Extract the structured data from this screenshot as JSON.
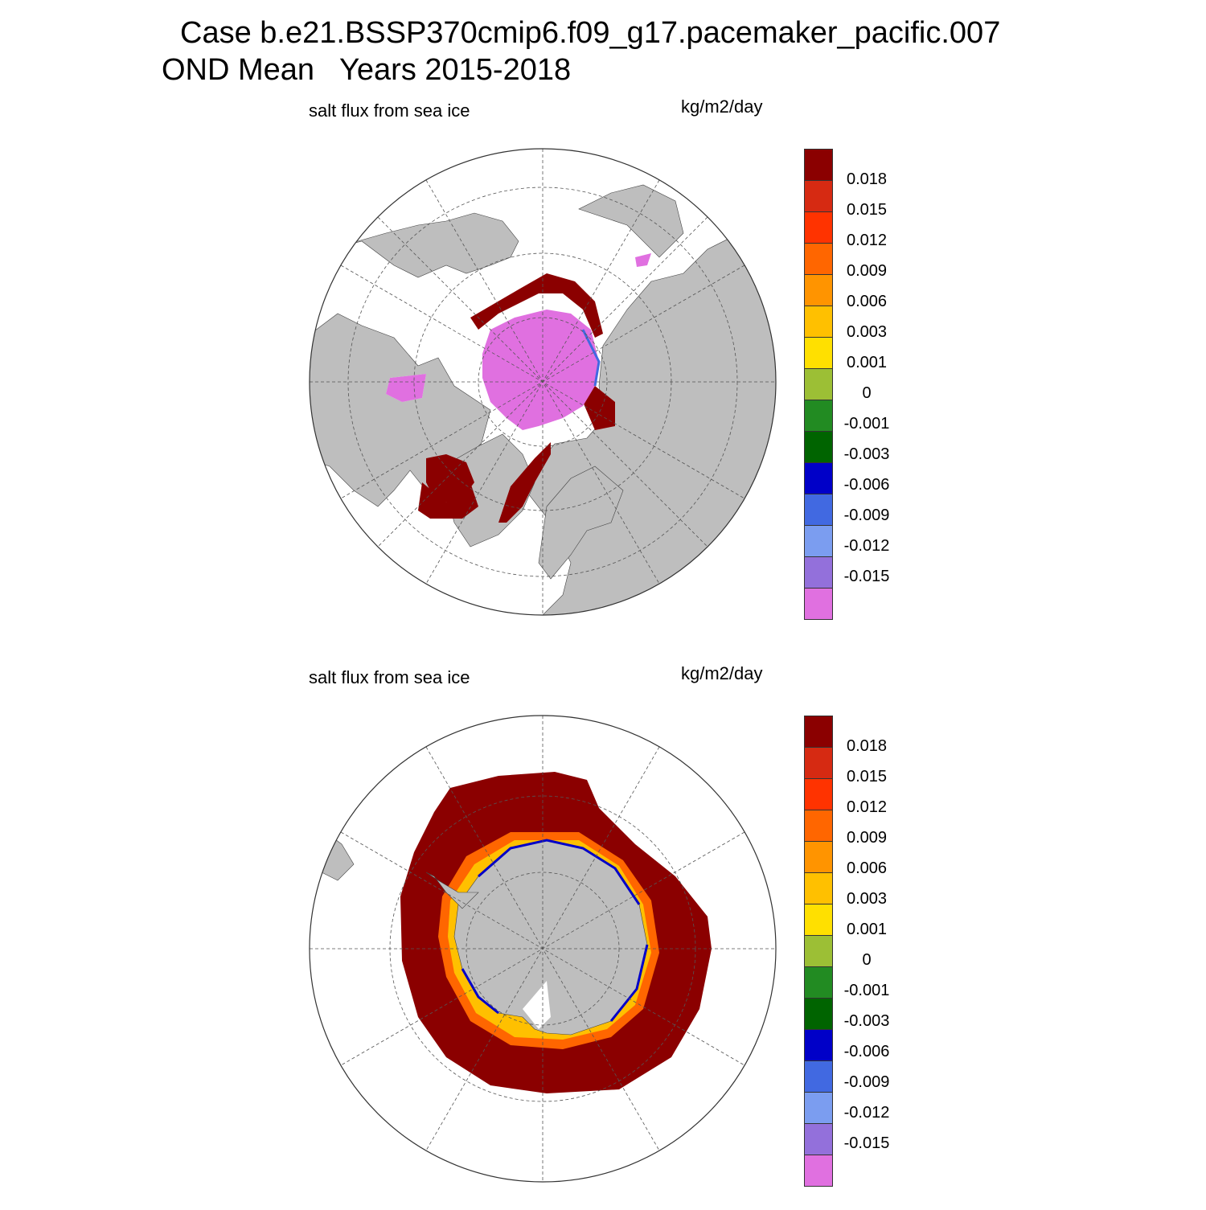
{
  "title": {
    "line1": "Case b.e21.BSSP370cmip6.f09_g17.pacemaker_pacific.007",
    "line2": "OND Mean   Years 2015-2018"
  },
  "panels": [
    {
      "name": "north",
      "variable": "salt flux from sea ice",
      "units": "kg/m2/day",
      "hemisphere": "Arctic"
    },
    {
      "name": "south",
      "variable": "salt flux from sea ice",
      "units": "kg/m2/day",
      "hemisphere": "Antarctic"
    }
  ],
  "colorbar": {
    "labels": [
      "0.018",
      "0.015",
      "0.012",
      "0.009",
      "0.006",
      "0.003",
      "0.001",
      "0",
      "-0.001",
      "-0.003",
      "-0.006",
      "-0.009",
      "-0.012",
      "-0.015"
    ],
    "colors": [
      "#8b0000",
      "#d62a12",
      "#ff3300",
      "#ff6600",
      "#ff9400",
      "#ffc000",
      "#ffe000",
      "#9cbf35",
      "#228b22",
      "#006400",
      "#0000c8",
      "#4169e1",
      "#7b9df0",
      "#9370db",
      "#e070e0"
    ]
  },
  "map_colors": {
    "land": "#bebebe",
    "ocean": "#ffffff",
    "grid": "#555555"
  }
}
